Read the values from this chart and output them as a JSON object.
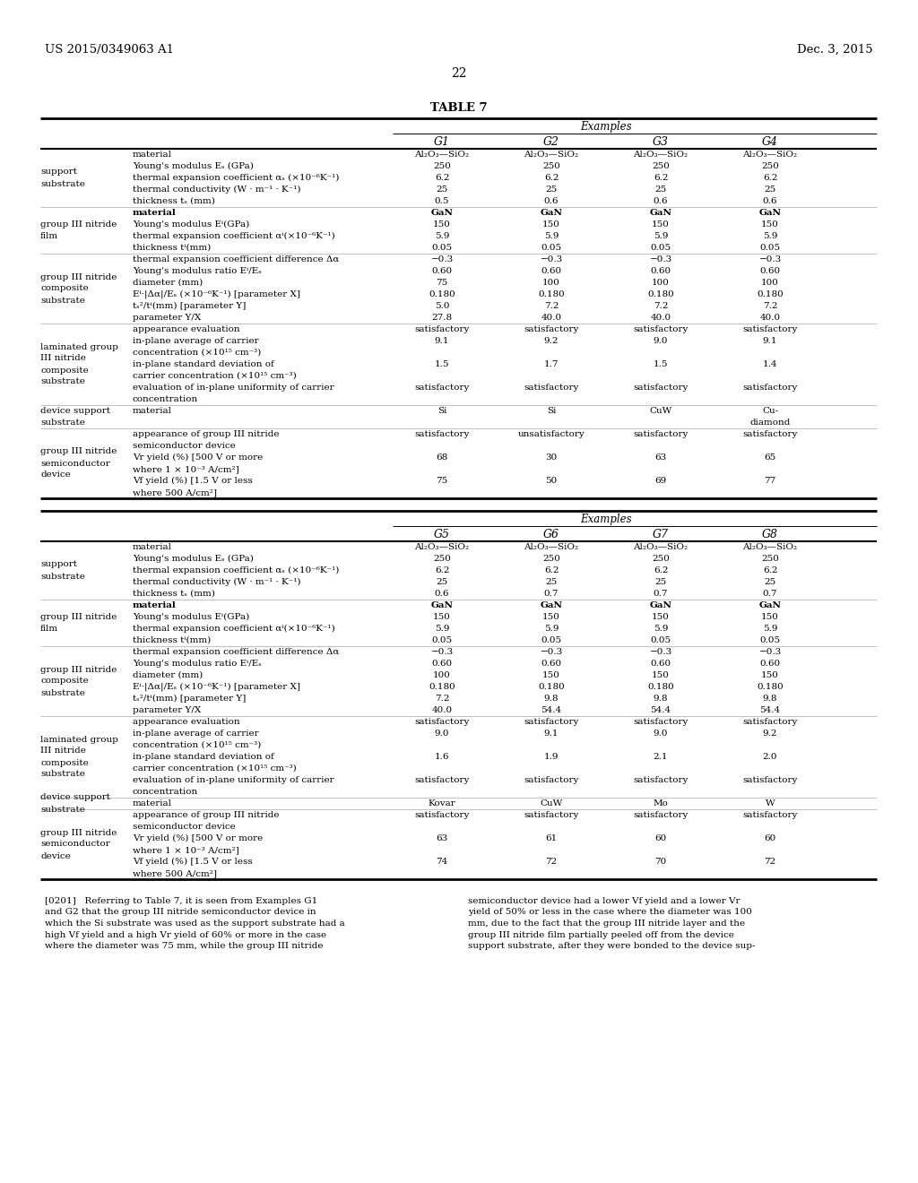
{
  "header_left": "US 2015/0349063 A1",
  "header_right": "Dec. 3, 2015",
  "page_number": "22",
  "table_title": "TABLE 7",
  "background_color": "#ffffff",
  "tables": [
    {
      "col_headers": [
        "G1",
        "G2",
        "G3",
        "G4"
      ],
      "row_groups": [
        {
          "group_label": [
            "support",
            "substrate"
          ],
          "rows": [
            {
              "label": [
                "material"
              ],
              "values": [
                "Al₂O₃—SiO₂",
                "Al₂O₃—SiO₂",
                "Al₂O₃—SiO₂",
                "Al₂O₃—SiO₂"
              ]
            },
            {
              "label": [
                "Young's modulus Eₛ (GPa)"
              ],
              "values": [
                "250",
                "250",
                "250",
                "250"
              ]
            },
            {
              "label": [
                "thermal expansion coefficient αₛ (×10⁻⁶K⁻¹)"
              ],
              "values": [
                "6.2",
                "6.2",
                "6.2",
                "6.2"
              ]
            },
            {
              "label": [
                "thermal conductivity (W · m⁻¹ · K⁻¹)"
              ],
              "values": [
                "25",
                "25",
                "25",
                "25"
              ]
            },
            {
              "label": [
                "thickness tₛ (mm)"
              ],
              "values": [
                "0.5",
                "0.6",
                "0.6",
                "0.6"
              ]
            }
          ]
        },
        {
          "group_label": [
            "group III nitride",
            "film"
          ],
          "rows": [
            {
              "label": [
                "material"
              ],
              "values": [
                "GaN",
                "GaN",
                "GaN",
                "GaN"
              ],
              "bold": true
            },
            {
              "label": [
                "Young's modulus Eⁱ(GPa)"
              ],
              "values": [
                "150",
                "150",
                "150",
                "150"
              ]
            },
            {
              "label": [
                "thermal expansion coefficient αⁱ(×10⁻⁶K⁻¹)"
              ],
              "values": [
                "5.9",
                "5.9",
                "5.9",
                "5.9"
              ]
            },
            {
              "label": [
                "thickness tⁱ(mm)"
              ],
              "values": [
                "0.05",
                "0.05",
                "0.05",
                "0.05"
              ]
            }
          ]
        },
        {
          "group_label": [
            "group III nitride",
            "composite",
            "substrate"
          ],
          "rows": [
            {
              "label": [
                "thermal expansion coefficient difference Δα"
              ],
              "values": [
                "−0.3",
                "−0.3",
                "−0.3",
                "−0.3"
              ]
            },
            {
              "label": [
                "Young's modulus ratio Eⁱ/Eₛ"
              ],
              "values": [
                "0.60",
                "0.60",
                "0.60",
                "0.60"
              ]
            },
            {
              "label": [
                "diameter (mm)"
              ],
              "values": [
                "75",
                "100",
                "100",
                "100"
              ]
            },
            {
              "label": [
                "Eⁱ·|Δα|/Eₛ (×10⁻⁶K⁻¹) [parameter X]"
              ],
              "values": [
                "0.180",
                "0.180",
                "0.180",
                "0.180"
              ]
            },
            {
              "label": [
                "tₛ²/tⁱ(mm) [parameter Y]"
              ],
              "values": [
                "5.0",
                "7.2",
                "7.2",
                "7.2"
              ]
            },
            {
              "label": [
                "parameter Y/X"
              ],
              "values": [
                "27.8",
                "40.0",
                "40.0",
                "40.0"
              ]
            }
          ]
        },
        {
          "group_label": [
            "laminated group",
            "III nitride",
            "composite",
            "substrate"
          ],
          "rows": [
            {
              "label": [
                "appearance evaluation"
              ],
              "values": [
                "satisfactory",
                "satisfactory",
                "satisfactory",
                "satisfactory"
              ]
            },
            {
              "label": [
                "in-plane average of carrier",
                "concentration (×10¹⁵ cm⁻³)"
              ],
              "values": [
                "9.1",
                "9.2",
                "9.0",
                "9.1"
              ]
            },
            {
              "label": [
                "in-plane standard deviation of",
                "carrier concentration (×10¹⁵ cm⁻³)"
              ],
              "values": [
                "1.5",
                "1.7",
                "1.5",
                "1.4"
              ]
            },
            {
              "label": [
                "evaluation of in-plane uniformity of carrier",
                "concentration"
              ],
              "values": [
                "satisfactory",
                "satisfactory",
                "satisfactory",
                "satisfactory"
              ]
            }
          ]
        },
        {
          "group_label": [
            "device support",
            "substrate"
          ],
          "rows": [
            {
              "label": [
                "material"
              ],
              "values": [
                "Si",
                "Si",
                "CuW",
                "Cu-\ndiamond"
              ]
            }
          ]
        },
        {
          "group_label": [
            "group III nitride",
            "semiconductor",
            "device"
          ],
          "rows": [
            {
              "label": [
                "appearance of group III nitride",
                "semiconductor device"
              ],
              "values": [
                "satisfactory",
                "unsatisfactory",
                "satisfactory",
                "satisfactory"
              ]
            },
            {
              "label": [
                "Vr yield (%) [500 V or more",
                "where 1 × 10⁻³ A/cm²]"
              ],
              "values": [
                "68",
                "30",
                "63",
                "65"
              ]
            },
            {
              "label": [
                "Vf yield (%) [1.5 V or less",
                "where 500 A/cm²]"
              ],
              "values": [
                "75",
                "50",
                "69",
                "77"
              ]
            }
          ]
        }
      ]
    },
    {
      "col_headers": [
        "G5",
        "G6",
        "G7",
        "G8"
      ],
      "row_groups": [
        {
          "group_label": [
            "support",
            "substrate"
          ],
          "rows": [
            {
              "label": [
                "material"
              ],
              "values": [
                "Al₂O₃—SiO₂",
                "Al₂O₃—SiO₂",
                "Al₂O₃—SiO₂",
                "Al₂O₃—SiO₂"
              ]
            },
            {
              "label": [
                "Young's modulus Eₛ (GPa)"
              ],
              "values": [
                "250",
                "250",
                "250",
                "250"
              ]
            },
            {
              "label": [
                "thermal expansion coefficient αₛ (×10⁻⁶K⁻¹)"
              ],
              "values": [
                "6.2",
                "6.2",
                "6.2",
                "6.2"
              ]
            },
            {
              "label": [
                "thermal conductivity (W · m⁻¹ · K⁻¹)"
              ],
              "values": [
                "25",
                "25",
                "25",
                "25"
              ]
            },
            {
              "label": [
                "thickness tₛ (mm)"
              ],
              "values": [
                "0.6",
                "0.7",
                "0.7",
                "0.7"
              ]
            }
          ]
        },
        {
          "group_label": [
            "group III nitride",
            "film"
          ],
          "rows": [
            {
              "label": [
                "material"
              ],
              "values": [
                "GaN",
                "GaN",
                "GaN",
                "GaN"
              ],
              "bold": true
            },
            {
              "label": [
                "Young's modulus Eⁱ(GPa)"
              ],
              "values": [
                "150",
                "150",
                "150",
                "150"
              ]
            },
            {
              "label": [
                "thermal expansion coefficient αⁱ(×10⁻⁶K⁻¹)"
              ],
              "values": [
                "5.9",
                "5.9",
                "5.9",
                "5.9"
              ]
            },
            {
              "label": [
                "thickness tⁱ(mm)"
              ],
              "values": [
                "0.05",
                "0.05",
                "0.05",
                "0.05"
              ]
            }
          ]
        },
        {
          "group_label": [
            "group III nitride",
            "composite",
            "substrate"
          ],
          "rows": [
            {
              "label": [
                "thermal expansion coefficient difference Δα"
              ],
              "values": [
                "−0.3",
                "−0.3",
                "−0.3",
                "−0.3"
              ]
            },
            {
              "label": [
                "Young's modulus ratio Eⁱ/Eₛ"
              ],
              "values": [
                "0.60",
                "0.60",
                "0.60",
                "0.60"
              ]
            },
            {
              "label": [
                "diameter (mm)"
              ],
              "values": [
                "100",
                "150",
                "150",
                "150"
              ]
            },
            {
              "label": [
                "Eⁱ·|Δα|/Eₛ (×10⁻⁶K⁻¹) [parameter X]"
              ],
              "values": [
                "0.180",
                "0.180",
                "0.180",
                "0.180"
              ]
            },
            {
              "label": [
                "tₛ²/tⁱ(mm) [parameter Y]"
              ],
              "values": [
                "7.2",
                "9.8",
                "9.8",
                "9.8"
              ]
            },
            {
              "label": [
                "parameter Y/X"
              ],
              "values": [
                "40.0",
                "54.4",
                "54.4",
                "54.4"
              ]
            }
          ]
        },
        {
          "group_label": [
            "laminated group",
            "III nitride",
            "composite",
            "substrate"
          ],
          "rows": [
            {
              "label": [
                "appearance evaluation"
              ],
              "values": [
                "satisfactory",
                "satisfactory",
                "satisfactory",
                "satisfactory"
              ]
            },
            {
              "label": [
                "in-plane average of carrier",
                "concentration (×10¹⁵ cm⁻³)"
              ],
              "values": [
                "9.0",
                "9.1",
                "9.0",
                "9.2"
              ]
            },
            {
              "label": [
                "in-plane standard deviation of",
                "carrier concentration (×10¹⁵ cm⁻³)"
              ],
              "values": [
                "1.6",
                "1.9",
                "2.1",
                "2.0"
              ]
            },
            {
              "label": [
                "evaluation of in-plane uniformity of carrier",
                "concentration"
              ],
              "values": [
                "satisfactory",
                "satisfactory",
                "satisfactory",
                "satisfactory"
              ]
            }
          ]
        },
        {
          "group_label": [
            "device support",
            "substrate"
          ],
          "rows": [
            {
              "label": [
                "material"
              ],
              "values": [
                "Kovar",
                "CuW",
                "Mo",
                "W"
              ]
            }
          ]
        },
        {
          "group_label": [
            "group III nitride",
            "semiconductor",
            "device"
          ],
          "rows": [
            {
              "label": [
                "appearance of group III nitride",
                "semiconductor device"
              ],
              "values": [
                "satisfactory",
                "satisfactory",
                "satisfactory",
                "satisfactory"
              ]
            },
            {
              "label": [
                "Vr yield (%) [500 V or more",
                "where 1 × 10⁻³ A/cm²]"
              ],
              "values": [
                "63",
                "61",
                "60",
                "60"
              ]
            },
            {
              "label": [
                "Vf yield (%) [1.5 V or less",
                "where 500 A/cm²]"
              ],
              "values": [
                "74",
                "72",
                "70",
                "72"
              ]
            }
          ]
        }
      ]
    }
  ],
  "bottom_text_left": "[0201]   Referring to Table 7, it is seen from Examples G1\nand G2 that the group III nitride semiconductor device in\nwhich the Si substrate was used as the support substrate had a\nhigh Vf yield and a high Vr yield of 60% or more in the case\nwhere the diameter was 75 mm, while the group III nitride",
  "bottom_text_right": "semiconductor device had a lower Vf yield and a lower Vr\nyield of 50% or less in the case where the diameter was 100\nmm, due to the fact that the group III nitride layer and the\ngroup III nitride film partially peeled off from the device\nsupport substrate, after they were bonded to the device sup-"
}
